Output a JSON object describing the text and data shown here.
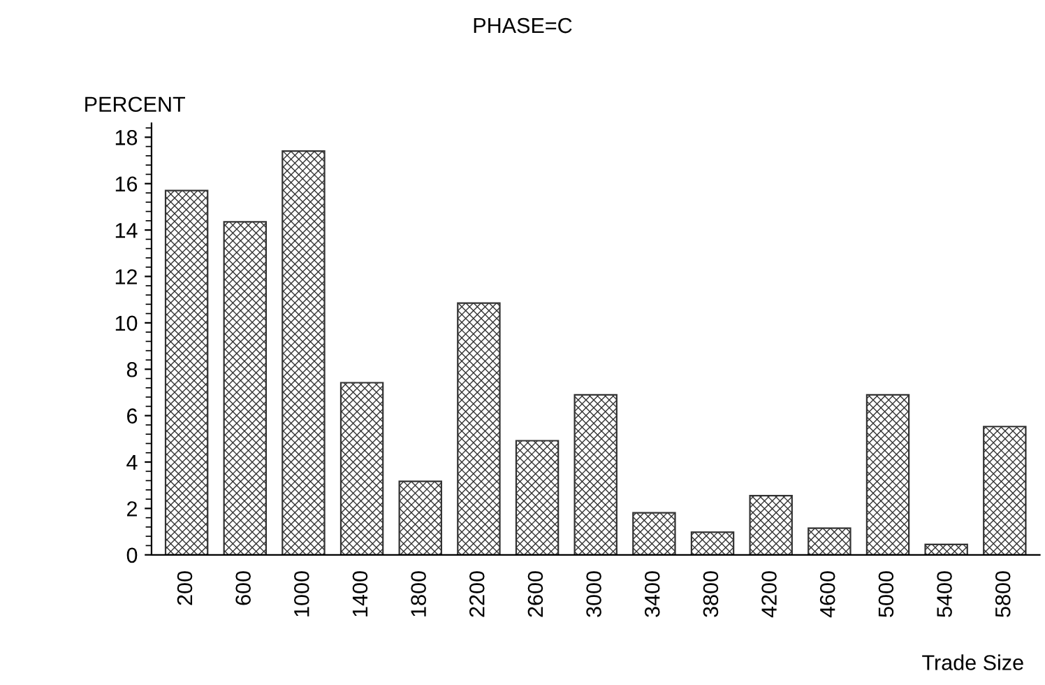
{
  "chart_data": {
    "type": "bar",
    "title": "PHASE=C",
    "xlabel": "Trade Size",
    "ylabel": "PERCENT",
    "categories": [
      "200",
      "600",
      "1000",
      "1400",
      "1800",
      "2200",
      "2600",
      "3000",
      "3400",
      "3800",
      "4200",
      "4600",
      "5000",
      "5400",
      "5800"
    ],
    "values": [
      15.7,
      14.35,
      17.4,
      7.42,
      3.17,
      10.85,
      4.92,
      6.9,
      1.81,
      0.98,
      2.55,
      1.15,
      6.9,
      0.45,
      5.53
    ],
    "color": "#333333",
    "ylim": [
      0,
      18.6
    ],
    "yticks": [
      0,
      2,
      4,
      6,
      8,
      10,
      12,
      14,
      16,
      18
    ],
    "grid": false,
    "legend": false
  }
}
